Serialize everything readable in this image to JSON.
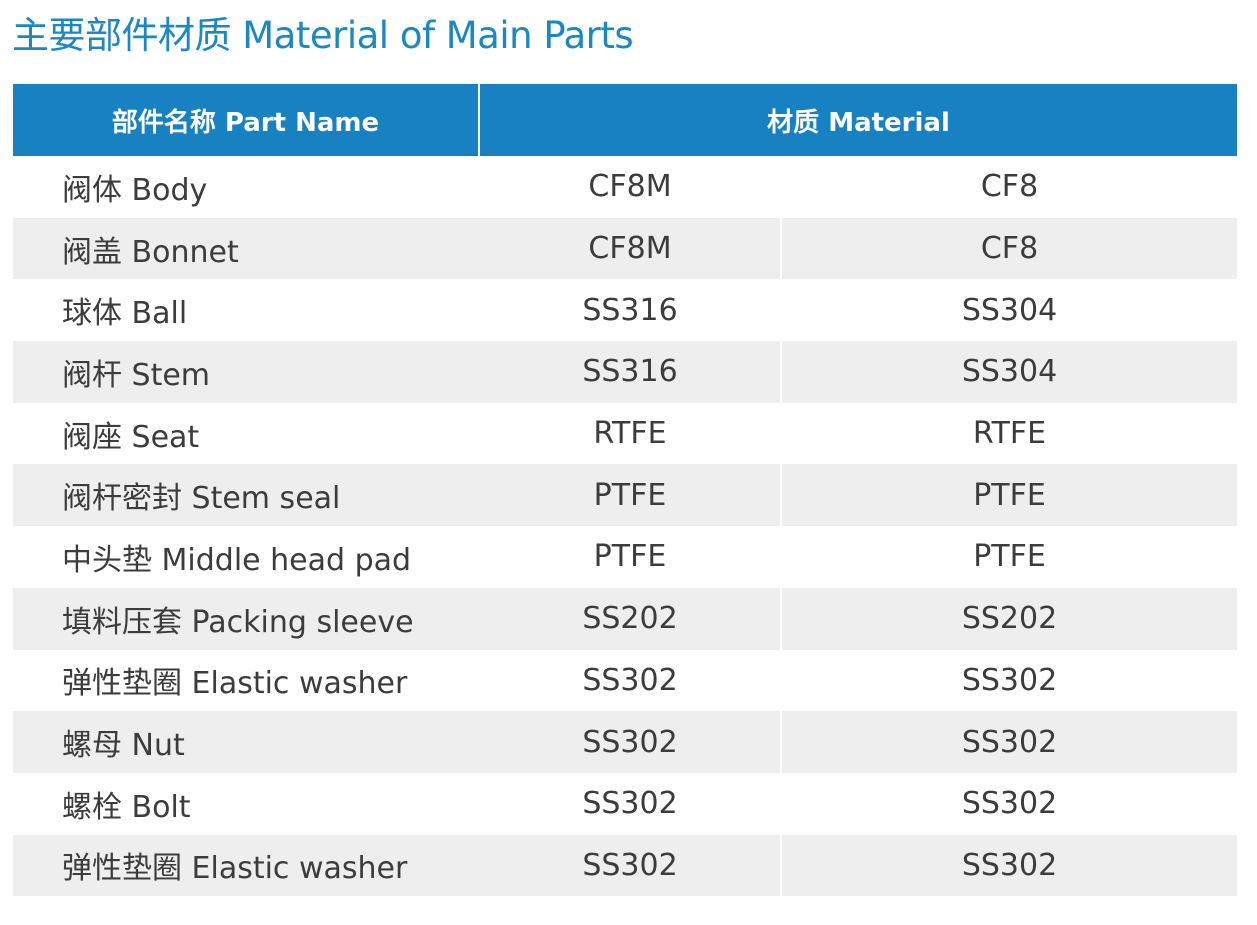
{
  "title": "主要部件材质 Material of Main Parts",
  "header": {
    "part_name": "部件名称 Part Name",
    "material": "材质 Material"
  },
  "rows": [
    {
      "part": "阀体 Body",
      "m1": "CF8M",
      "m2": "CF8"
    },
    {
      "part": "阀盖 Bonnet",
      "m1": "CF8M",
      "m2": "CF8"
    },
    {
      "part": "球体 Ball",
      "m1": "SS316",
      "m2": "SS304"
    },
    {
      "part": "阀杆 Stem",
      "m1": "SS316",
      "m2": "SS304"
    },
    {
      "part": "阀座 Seat",
      "m1": "RTFE",
      "m2": "RTFE"
    },
    {
      "part": "阀杆密封 Stem seal",
      "m1": "PTFE",
      "m2": "PTFE"
    },
    {
      "part": "中头垫 Middle head pad",
      "m1": "PTFE",
      "m2": "PTFE"
    },
    {
      "part": "填料压套 Packing sleeve",
      "m1": "SS202",
      "m2": "SS202"
    },
    {
      "part": "弹性垫圈 Elastic washer",
      "m1": "SS302",
      "m2": "SS302"
    },
    {
      "part": "螺母 Nut",
      "m1": "SS302",
      "m2": "SS302"
    },
    {
      "part": "螺栓 Bolt",
      "m1": "SS302",
      "m2": "SS302"
    },
    {
      "part": "弹性垫圈 Elastic washer",
      "m1": "SS302",
      "m2": "SS302"
    }
  ],
  "colors": {
    "title": "#1b87c3",
    "header_bg": "#1781c2",
    "header_text": "#ffffff",
    "stripe_bg": "#eeeeee",
    "body_text": "#3c3c3c"
  }
}
